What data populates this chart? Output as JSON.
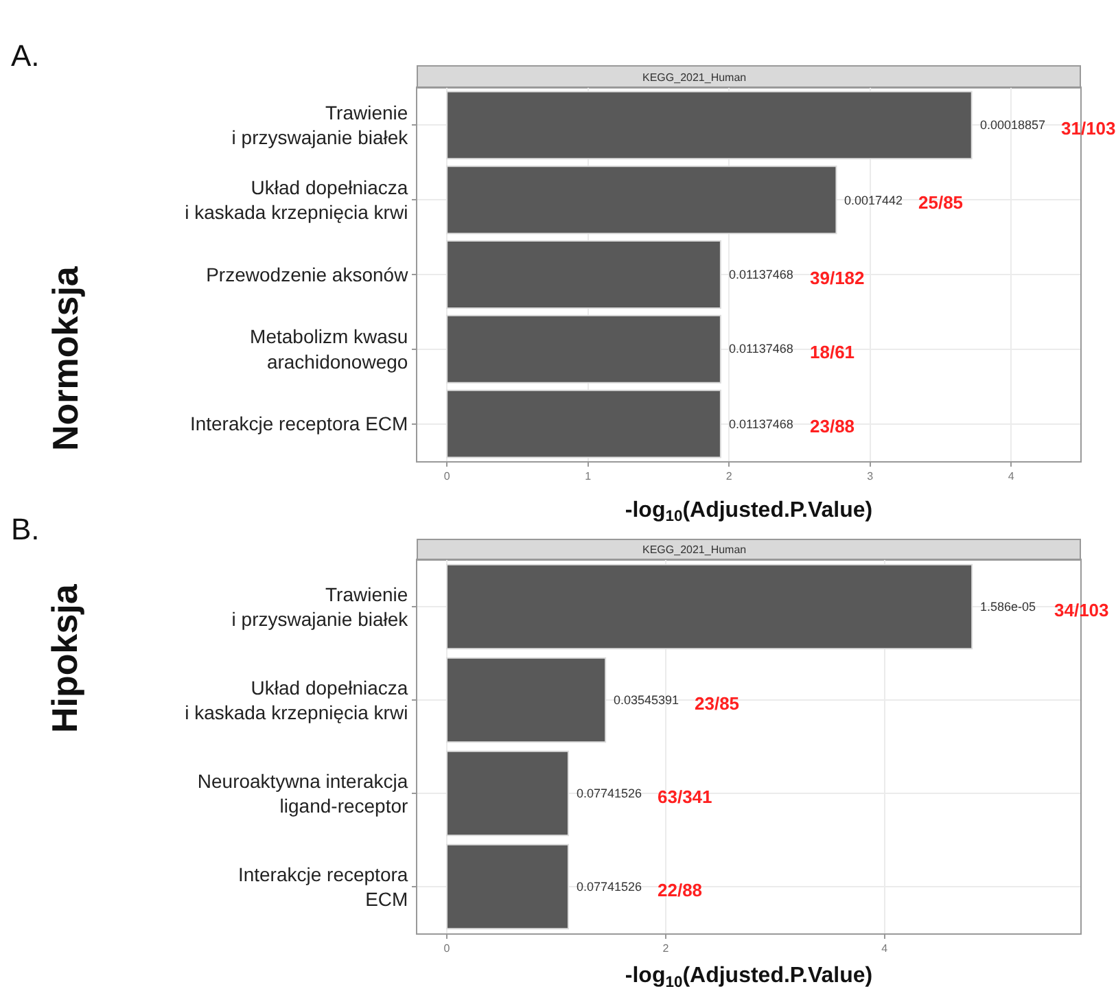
{
  "chart_data": [
    {
      "type": "bar",
      "orientation": "horizontal",
      "title": "A.",
      "ylabel": "Normoksja",
      "subtitle": "KEGG_2021_Human",
      "xlabel": "-log$_{10}$(Adjusted.P.Value)",
      "categories": [
        "Trawienie\ni przyswajanie białek",
        "Układ dopełniacza\ni kaskada krzepnięcia krwi",
        "Przewodzenie aksonów",
        "Metabolizm kwasu\narachidonowego",
        "Interakcje receptora ECM"
      ],
      "values": [
        3.72,
        2.76,
        1.94,
        1.94,
        1.94
      ],
      "color": "#595959",
      "annotations": [
        "0.00018857",
        "31/103",
        "0.0017442",
        "25/85",
        "0.01137468",
        "39/182",
        "0.01137468",
        "18/61",
        "0.01137468",
        "23/88"
      ],
      "xlim": [
        -0.21,
        4.49
      ],
      "xticks": [
        0,
        1,
        2,
        3,
        4
      ],
      "grid": true
    },
    {
      "type": "bar",
      "orientation": "horizontal",
      "title": "B.",
      "ylabel": "Hipoksja",
      "subtitle": "KEGG_2021_Human",
      "xlabel": "-log$_{10}$(Adjusted.P.Value)",
      "categories": [
        "Trawienie\ni przyswajanie białek",
        "Układ dopełniacza\ni kaskada krzepnięcia krwi",
        "Neuroaktywna interakcja\nligand-receptor",
        "Interakcje receptora\nECM"
      ],
      "values": [
        4.8,
        1.45,
        1.11,
        1.11
      ],
      "color": "#595959",
      "annotations": [
        "1.586e-05",
        "34/103",
        "0.03545391",
        "23/85",
        "0.07741526",
        "63/341",
        "0.07741526",
        "22/88"
      ],
      "xlim": [
        -0.27,
        5.79
      ],
      "xticks": [
        0,
        2,
        4
      ],
      "grid": true
    }
  ]
}
